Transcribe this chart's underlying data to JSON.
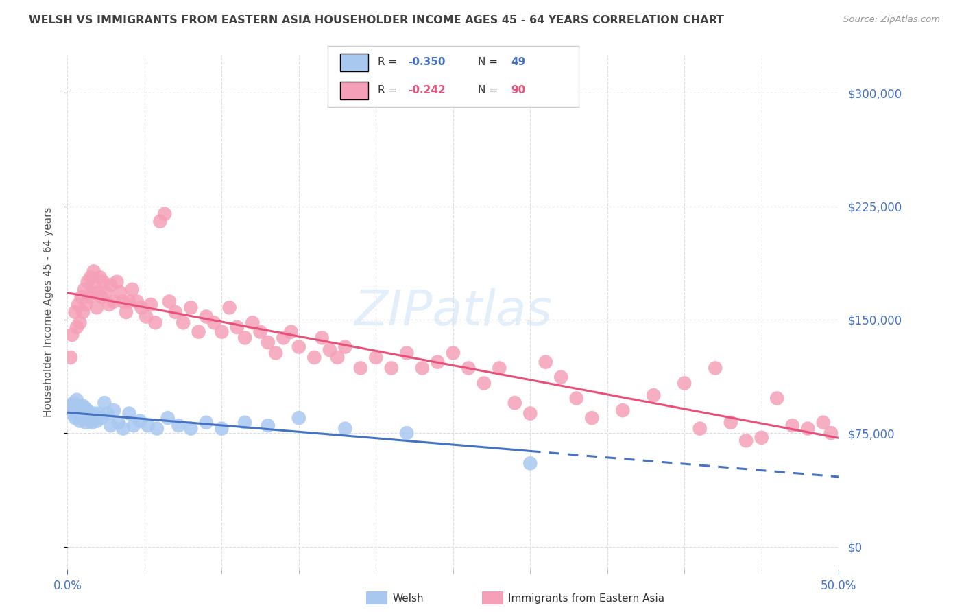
{
  "title": "WELSH VS IMMIGRANTS FROM EASTERN ASIA HOUSEHOLDER INCOME AGES 45 - 64 YEARS CORRELATION CHART",
  "source": "Source: ZipAtlas.com",
  "ylabel": "Householder Income Ages 45 - 64 years",
  "xlim": [
    0.0,
    0.5
  ],
  "ylim": [
    -15000,
    325000
  ],
  "yticks": [
    0,
    75000,
    150000,
    225000,
    300000
  ],
  "xticks_major": [
    0.0,
    0.5
  ],
  "xtick_labels": [
    "0.0%",
    "50.0%"
  ],
  "xticks_minor": [
    0.05,
    0.1,
    0.15,
    0.2,
    0.25,
    0.3,
    0.35,
    0.4,
    0.45
  ],
  "blue_color": "#A8C8F0",
  "pink_color": "#F5A0B8",
  "blue_line_color": "#4472C4",
  "pink_line_color": "#E8507A",
  "R_welsh": -0.35,
  "N_welsh": 49,
  "R_eastern": -0.242,
  "N_eastern": 90,
  "title_color": "#404040",
  "source_color": "#999999",
  "axis_label_color": "#555555",
  "tick_color": "#4472C4",
  "watermark": "ZIPatlas",
  "watermark_color": "#D0E4F5",
  "background_color": "#FFFFFF",
  "grid_color": "#DDDDDD",
  "welsh_x": [
    0.002,
    0.003,
    0.004,
    0.005,
    0.005,
    0.006,
    0.007,
    0.007,
    0.008,
    0.008,
    0.009,
    0.01,
    0.01,
    0.011,
    0.011,
    0.012,
    0.012,
    0.013,
    0.013,
    0.014,
    0.015,
    0.016,
    0.017,
    0.018,
    0.019,
    0.02,
    0.022,
    0.024,
    0.026,
    0.028,
    0.03,
    0.033,
    0.036,
    0.04,
    0.043,
    0.047,
    0.052,
    0.058,
    0.065,
    0.072,
    0.08,
    0.09,
    0.1,
    0.115,
    0.13,
    0.15,
    0.18,
    0.22,
    0.3
  ],
  "welsh_y": [
    93000,
    88000,
    95000,
    90000,
    85000,
    97000,
    88000,
    93000,
    83000,
    90000,
    88000,
    93000,
    85000,
    87000,
    92000,
    88000,
    82000,
    90000,
    85000,
    88000,
    83000,
    82000,
    88000,
    85000,
    83000,
    88000,
    85000,
    95000,
    88000,
    80000,
    90000,
    82000,
    78000,
    88000,
    80000,
    83000,
    80000,
    78000,
    85000,
    80000,
    78000,
    82000,
    78000,
    82000,
    80000,
    85000,
    78000,
    75000,
    55000
  ],
  "eastern_x": [
    0.002,
    0.003,
    0.005,
    0.006,
    0.007,
    0.008,
    0.009,
    0.01,
    0.011,
    0.012,
    0.013,
    0.014,
    0.015,
    0.016,
    0.017,
    0.018,
    0.019,
    0.02,
    0.021,
    0.022,
    0.023,
    0.025,
    0.027,
    0.028,
    0.03,
    0.032,
    0.034,
    0.036,
    0.038,
    0.04,
    0.042,
    0.045,
    0.048,
    0.051,
    0.054,
    0.057,
    0.06,
    0.063,
    0.066,
    0.07,
    0.075,
    0.08,
    0.085,
    0.09,
    0.095,
    0.1,
    0.105,
    0.11,
    0.115,
    0.12,
    0.125,
    0.13,
    0.135,
    0.14,
    0.145,
    0.15,
    0.16,
    0.165,
    0.17,
    0.175,
    0.18,
    0.19,
    0.2,
    0.21,
    0.22,
    0.23,
    0.24,
    0.25,
    0.26,
    0.27,
    0.28,
    0.29,
    0.3,
    0.31,
    0.32,
    0.33,
    0.34,
    0.36,
    0.38,
    0.4,
    0.41,
    0.42,
    0.43,
    0.44,
    0.45,
    0.46,
    0.47,
    0.48,
    0.49,
    0.495
  ],
  "eastern_y": [
    125000,
    140000,
    155000,
    145000,
    160000,
    148000,
    165000,
    155000,
    170000,
    160000,
    175000,
    165000,
    178000,
    168000,
    182000,
    172000,
    158000,
    168000,
    178000,
    165000,
    175000,
    168000,
    160000,
    173000,
    162000,
    175000,
    168000,
    162000,
    155000,
    162000,
    170000,
    162000,
    158000,
    152000,
    160000,
    148000,
    215000,
    220000,
    162000,
    155000,
    148000,
    158000,
    142000,
    152000,
    148000,
    142000,
    158000,
    145000,
    138000,
    148000,
    142000,
    135000,
    128000,
    138000,
    142000,
    132000,
    125000,
    138000,
    130000,
    125000,
    132000,
    118000,
    125000,
    118000,
    128000,
    118000,
    122000,
    128000,
    118000,
    108000,
    118000,
    95000,
    88000,
    122000,
    112000,
    98000,
    85000,
    90000,
    100000,
    108000,
    78000,
    118000,
    82000,
    70000,
    72000,
    98000,
    80000,
    78000,
    82000,
    75000
  ]
}
